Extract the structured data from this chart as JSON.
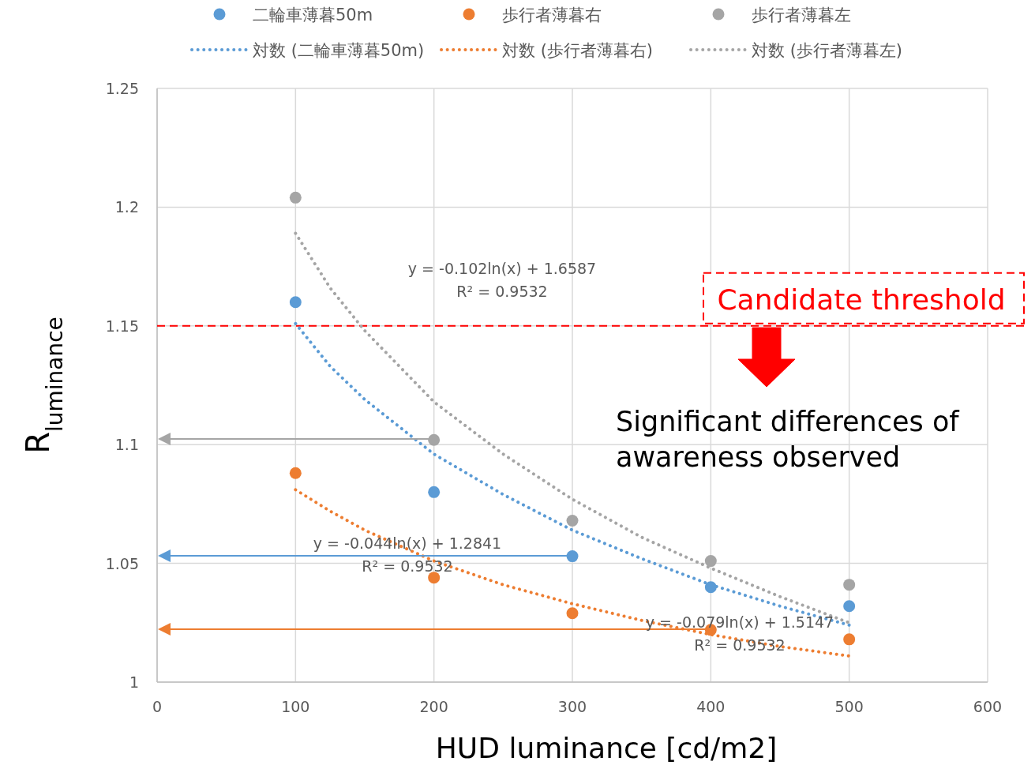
{
  "chart_data": {
    "type": "scatter",
    "xlabel": "HUD luminance [cd/m2]",
    "ylabel": "R$_{luminance}$",
    "x": [
      100,
      200,
      300,
      400,
      500
    ],
    "xlim": [
      0,
      600
    ],
    "xticks": [
      0,
      100,
      200,
      300,
      400,
      500,
      600
    ],
    "ylim": [
      1,
      1.25
    ],
    "yticks": [
      1,
      1.05,
      1.1,
      1.15,
      1.2,
      1.25
    ],
    "grid": true,
    "legend": "top",
    "series": [
      {
        "name": "二輪車薄暮50m",
        "marker": "circle",
        "color": "#5b9bd5",
        "values": [
          1.16,
          1.08,
          1.053,
          1.04,
          1.032
        ]
      },
      {
        "name": "歩行者薄暮右",
        "marker": "circle",
        "color": "#ed7d31",
        "values": [
          1.088,
          1.044,
          1.029,
          1.022,
          1.018
        ]
      },
      {
        "name": "歩行者薄暮左",
        "marker": "circle",
        "color": "#a5a5a5",
        "values": [
          1.204,
          1.102,
          1.068,
          1.051,
          1.041
        ]
      },
      {
        "name": "対数 (二輪車薄暮50m)",
        "type": "line",
        "marker": "none",
        "line_style": "dotted",
        "color": "#5b9bd5",
        "x": [
          100,
          125,
          150,
          200,
          250,
          300,
          350,
          400,
          450,
          500
        ],
        "values": [
          1.151,
          1.133,
          1.119,
          1.096,
          1.079,
          1.064,
          1.052,
          1.041,
          1.032,
          1.024
        ]
      },
      {
        "name": "対数 (歩行者薄暮右)",
        "type": "line",
        "marker": "none",
        "line_style": "dotted",
        "color": "#ed7d31",
        "x": [
          100,
          125,
          150,
          200,
          250,
          300,
          350,
          400,
          450,
          500
        ],
        "values": [
          1.081,
          1.072,
          1.064,
          1.051,
          1.041,
          1.033,
          1.026,
          1.02,
          1.015,
          1.011
        ]
      },
      {
        "name": "対数 (歩行者薄暮左)",
        "type": "line",
        "marker": "none",
        "line_style": "dotted",
        "color": "#a5a5a5",
        "x": [
          100,
          125,
          150,
          200,
          250,
          300,
          350,
          400,
          450,
          500
        ],
        "values": [
          1.189,
          1.166,
          1.148,
          1.118,
          1.096,
          1.077,
          1.061,
          1.048,
          1.036,
          1.025
        ]
      }
    ],
    "ref_lines": [
      {
        "axis": "y",
        "value": 1.15,
        "label": "Candidate threshold",
        "color": "#ff0000",
        "line_style": "dashed"
      }
    ],
    "annotations": [
      "y = -0.102ln(x) + 1.6587\nR² = 0.9532",
      "y = -0.079ln(x) + 1.5147\nR² = 0.9532",
      "y = -0.044ln(x) + 1.2841\nR² = 0.9532",
      "Significant differences of\nawareness observed"
    ]
  }
}
